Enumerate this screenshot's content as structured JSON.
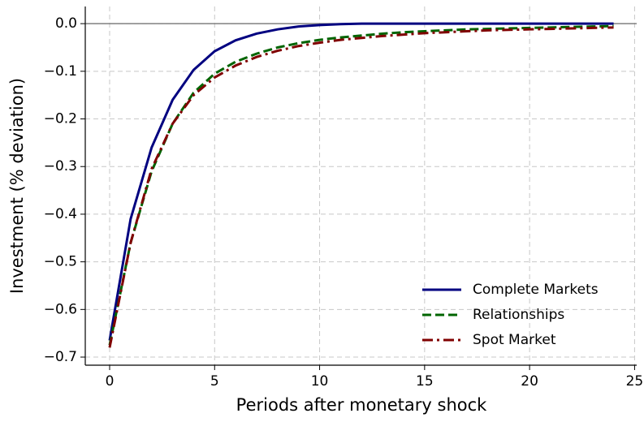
{
  "chart_data": {
    "type": "line",
    "xlabel": "Periods after monetary shock",
    "ylabel": "Investment (% deviation)",
    "x": [
      0,
      1,
      2,
      3,
      4,
      5,
      6,
      7,
      8,
      9,
      10,
      11,
      12,
      13,
      14,
      15,
      16,
      17,
      18,
      19,
      20,
      21,
      22,
      23,
      24
    ],
    "series": [
      {
        "name": "Complete Markets",
        "color": "#000080",
        "linestyle": "solid",
        "values": [
          -0.665,
          -0.41,
          -0.26,
          -0.16,
          -0.097,
          -0.058,
          -0.035,
          -0.021,
          -0.012,
          -0.006,
          -0.003,
          -0.001,
          0,
          0,
          0,
          0,
          0,
          0,
          0,
          0,
          0,
          0,
          0,
          0,
          0
        ]
      },
      {
        "name": "Relationships",
        "color": "#006400",
        "linestyle": "dashed",
        "values": [
          -0.675,
          -0.46,
          -0.31,
          -0.21,
          -0.145,
          -0.105,
          -0.08,
          -0.063,
          -0.05,
          -0.041,
          -0.034,
          -0.029,
          -0.025,
          -0.021,
          -0.018,
          -0.016,
          -0.014,
          -0.012,
          -0.011,
          -0.01,
          -0.009,
          -0.008,
          -0.007,
          -0.006,
          -0.005
        ]
      },
      {
        "name": "Spot Market",
        "color": "#800000",
        "linestyle": "dashdot",
        "values": [
          -0.68,
          -0.46,
          -0.305,
          -0.21,
          -0.15,
          -0.113,
          -0.088,
          -0.07,
          -0.057,
          -0.047,
          -0.04,
          -0.034,
          -0.03,
          -0.026,
          -0.023,
          -0.02,
          -0.018,
          -0.016,
          -0.014,
          -0.013,
          -0.012,
          -0.011,
          -0.01,
          -0.009,
          -0.008
        ]
      }
    ],
    "xlim": [
      -1.16,
      25.1
    ],
    "ylim": [
      -0.717,
      0.036
    ],
    "xticks": [
      0,
      5,
      10,
      15,
      20,
      25
    ],
    "yticks": [
      {
        "value": 0,
        "label": "0.0"
      },
      {
        "value": -0.1,
        "label": "−0.1"
      },
      {
        "value": -0.2,
        "label": "−0.2"
      },
      {
        "value": -0.3,
        "label": "−0.3"
      },
      {
        "value": -0.4,
        "label": "−0.4"
      },
      {
        "value": -0.5,
        "label": "−0.5"
      },
      {
        "value": -0.6,
        "label": "−0.6"
      },
      {
        "value": -0.7,
        "label": "−0.7"
      }
    ],
    "reference_line": 0,
    "grid": true,
    "legend": "lower right"
  }
}
